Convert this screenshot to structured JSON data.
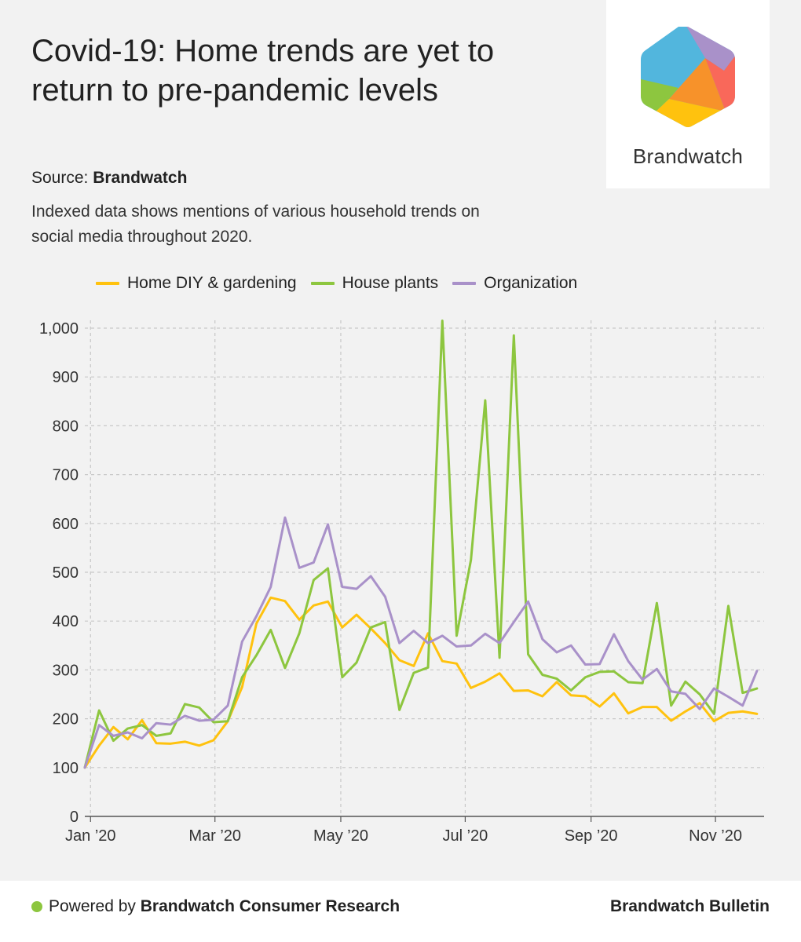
{
  "header": {
    "title": "Covid-19: Home trends are yet to return to pre-pandemic levels",
    "source_label": "Source:",
    "source_name": "Brandwatch",
    "subtitle": "Indexed data shows mentions of various household trends on social media throughout 2020."
  },
  "logo": {
    "text": "Brandwatch"
  },
  "footer": {
    "powered_prefix": "Powered by",
    "powered_name": "Brandwatch Consumer Research",
    "right_text": "Brandwatch Bulletin"
  },
  "colors": {
    "home_diy": "#ffc20e",
    "house_plants": "#8dc63f",
    "organization": "#a991c9",
    "footer_dot": "#8dc63f"
  },
  "chart_data": {
    "type": "line",
    "title": "Covid-19: Home trends are yet to return to pre-pandemic levels",
    "xlabel": "",
    "ylabel": "",
    "ylim": [
      0,
      1000
    ],
    "yticks": [
      0,
      100,
      200,
      300,
      400,
      500,
      600,
      700,
      800,
      900,
      1000
    ],
    "ytick_labels": [
      "0",
      "100",
      "200",
      "300",
      "400",
      "500",
      "600",
      "700",
      "800",
      "900",
      "1,000"
    ],
    "xlim": [
      0,
      47.5
    ],
    "xticks": [
      0.4,
      9.1,
      17.9,
      26.6,
      35.4,
      44.1
    ],
    "xtick_labels": [
      "Jan ’20",
      "Mar ’20",
      "May ’20",
      "Jul ’20",
      "Sep ’20",
      "Nov ’20"
    ],
    "grid": true,
    "legend": "top-left",
    "x_unit": "week index (week 0 = first week of Jan 2020)",
    "series": [
      {
        "name": "Home DIY & gardening",
        "color": "#ffc20e",
        "values": [
          100,
          145,
          183,
          158,
          197,
          150,
          149,
          153,
          145,
          156,
          195,
          265,
          395,
          448,
          441,
          403,
          432,
          440,
          387,
          413,
          385,
          355,
          320,
          308,
          375,
          318,
          313,
          263,
          276,
          293,
          257,
          258,
          246,
          275,
          248,
          246,
          225,
          252,
          211,
          224,
          224,
          196,
          215,
          232,
          195,
          212,
          215,
          210
        ]
      },
      {
        "name": "House plants",
        "color": "#8dc63f",
        "values": [
          100,
          217,
          155,
          180,
          187,
          165,
          170,
          230,
          223,
          193,
          195,
          285,
          330,
          382,
          304,
          375,
          484,
          508,
          285,
          315,
          387,
          398,
          218,
          294,
          305,
          1015,
          370,
          525,
          852,
          325,
          985,
          332,
          290,
          282,
          258,
          285,
          296,
          297,
          275,
          273,
          437,
          227,
          276,
          250,
          210,
          431,
          253,
          262
        ]
      },
      {
        "name": "Organization",
        "color": "#a991c9",
        "values": [
          100,
          187,
          165,
          172,
          160,
          191,
          188,
          206,
          196,
          198,
          227,
          358,
          410,
          470,
          612,
          509,
          520,
          598,
          470,
          466,
          492,
          450,
          355,
          380,
          355,
          370,
          348,
          350,
          374,
          355,
          398,
          440,
          363,
          336,
          350,
          311,
          312,
          373,
          318,
          280,
          302,
          256,
          251,
          220,
          262,
          245,
          227,
          298
        ]
      }
    ]
  }
}
